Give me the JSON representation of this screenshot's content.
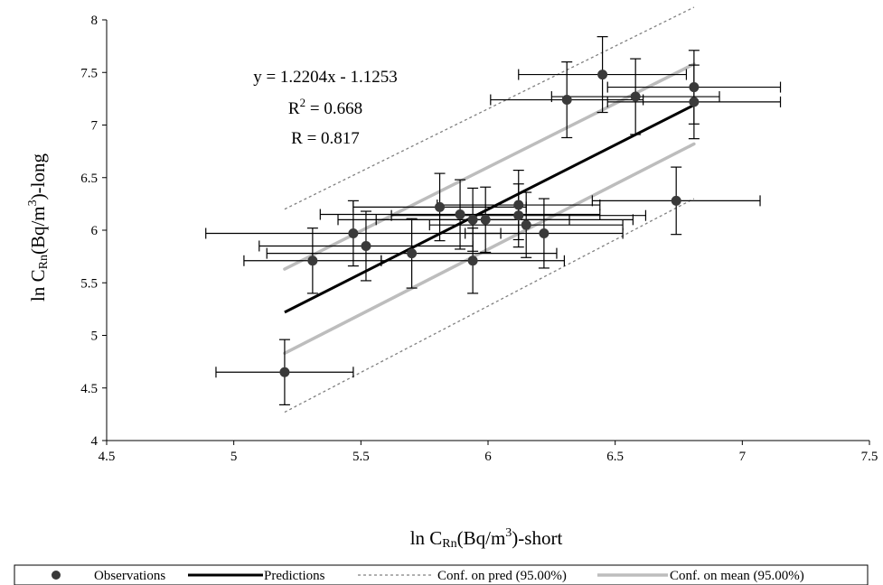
{
  "chart_data": {
    "type": "scatter",
    "xlabel": {
      "pre": "ln C",
      "sub": "Rn",
      "mid": "(Bq/m",
      "sup": "3",
      "post": ")-short"
    },
    "ylabel": {
      "pre": "ln C",
      "sub": "Rn",
      "mid": "(Bq/m",
      "sup": "3",
      "post": ")-long"
    },
    "xlim": [
      4.5,
      7.5
    ],
    "ylim": [
      4,
      8
    ],
    "x_ticks": [
      "4.5",
      "5",
      "5.5",
      "6",
      "6.5",
      "7",
      "7.5"
    ],
    "y_ticks": [
      "4",
      "4.5",
      "5",
      "5.5",
      "6",
      "6.5",
      "7",
      "7.5",
      "8"
    ],
    "grid": false,
    "legend_position": "bottom",
    "annotations": {
      "equation": "y = 1.2204x - 1.1253",
      "r2": {
        "pre": "R",
        "sup": "2",
        "post": " = 0.668"
      },
      "r": "R = 0.817"
    },
    "legend": {
      "observations": "Observations",
      "predictions": "Predictions",
      "conf_pred": "Conf. on pred (95.00%)",
      "conf_mean": "Conf. on mean (95.00%)"
    },
    "colors": {
      "observations": "#3a3a3a",
      "predictions": "#000000",
      "conf_pred": "#808080",
      "conf_mean": "#bdbdbd"
    },
    "series": [
      {
        "name": "Observations",
        "points": [
          {
            "x": 5.2,
            "y": 4.65,
            "xerr": 0.27,
            "yerr": 0.31
          },
          {
            "x": 5.31,
            "y": 5.71,
            "xerr": 0.27,
            "yerr": 0.31
          },
          {
            "x": 5.47,
            "y": 5.97,
            "xerr": 0.58,
            "yerr": 0.31
          },
          {
            "x": 5.52,
            "y": 5.85,
            "xerr": 0.42,
            "yerr": 0.33
          },
          {
            "x": 5.7,
            "y": 5.78,
            "xerr": 0.57,
            "yerr": 0.33
          },
          {
            "x": 5.81,
            "y": 6.22,
            "xerr": 0.34,
            "yerr": 0.32
          },
          {
            "x": 5.89,
            "y": 6.15,
            "xerr": 0.55,
            "yerr": 0.33
          },
          {
            "x": 5.94,
            "y": 6.1,
            "xerr": 0.38,
            "yerr": 0.3
          },
          {
            "x": 5.94,
            "y": 5.71,
            "xerr": 0.36,
            "yerr": 0.31
          },
          {
            "x": 5.99,
            "y": 6.1,
            "xerr": 0.58,
            "yerr": 0.31
          },
          {
            "x": 6.12,
            "y": 6.14,
            "xerr": 0.5,
            "yerr": 0.3
          },
          {
            "x": 6.12,
            "y": 6.24,
            "xerr": 0.32,
            "yerr": 0.33
          },
          {
            "x": 6.15,
            "y": 6.05,
            "xerr": 0.38,
            "yerr": 0.31
          },
          {
            "x": 6.22,
            "y": 5.97,
            "xerr": 0.31,
            "yerr": 0.33
          },
          {
            "x": 6.31,
            "y": 7.24,
            "xerr": 0.3,
            "yerr": 0.36
          },
          {
            "x": 6.45,
            "y": 7.48,
            "xerr": 0.33,
            "yerr": 0.36
          },
          {
            "x": 6.58,
            "y": 7.27,
            "xerr": 0.33,
            "yerr": 0.36
          },
          {
            "x": 6.74,
            "y": 6.28,
            "xerr": 0.33,
            "yerr": 0.32
          },
          {
            "x": 6.81,
            "y": 7.36,
            "xerr": 0.34,
            "yerr": 0.35
          },
          {
            "x": 6.81,
            "y": 7.22,
            "xerr": 0.34,
            "yerr": 0.35
          }
        ]
      },
      {
        "name": "Predictions",
        "x": [
          5.2,
          6.81
        ],
        "y": [
          5.22,
          7.19
        ]
      },
      {
        "name": "Conf. on pred (95.00%)",
        "lower": {
          "x": [
            5.2,
            6.81
          ],
          "y": [
            4.27,
            6.3
          ]
        },
        "upper": {
          "x": [
            5.2,
            6.81
          ],
          "y": [
            6.2,
            8.12
          ]
        }
      },
      {
        "name": "Conf. on mean (95.00%)",
        "lower": {
          "x": [
            5.2,
            6.81
          ],
          "y": [
            4.83,
            6.82
          ]
        },
        "upper": {
          "x": [
            5.2,
            6.81
          ],
          "y": [
            5.63,
            7.58
          ]
        }
      }
    ]
  }
}
